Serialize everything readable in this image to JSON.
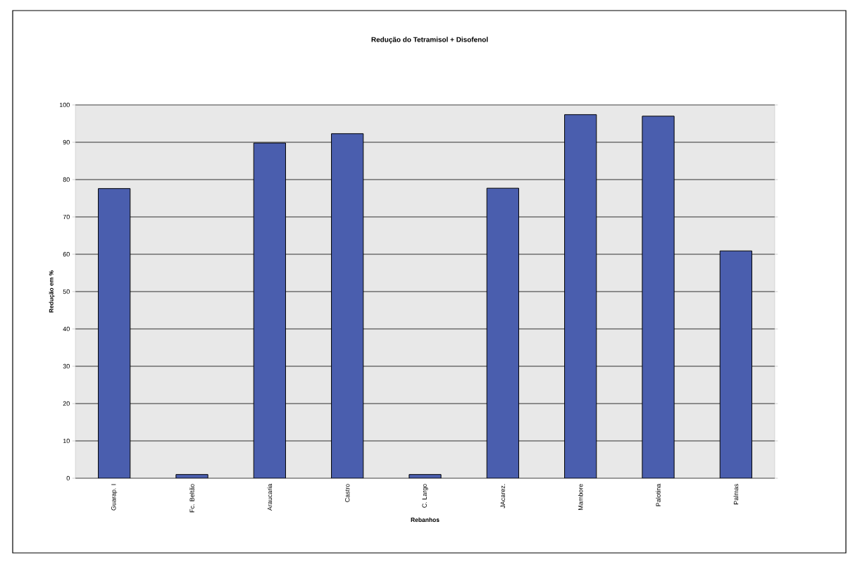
{
  "chart_data": {
    "type": "bar",
    "title": "Redução do Tetramisol + Disofenol",
    "xlabel": "Rebanhos",
    "ylabel": "Redução em %",
    "categories": [
      "Guarap. I",
      "Fc. Beltão",
      "Araucaria",
      "Castro",
      "C. Largo",
      "JAcarez.",
      "Mambore",
      "Palotina",
      "Palmas"
    ],
    "values": [
      77.6,
      1,
      89.8,
      92.3,
      1,
      77.7,
      97.4,
      97,
      60.9
    ],
    "color": "#4a5eae",
    "ylim": [
      0,
      100
    ],
    "yticks": [
      0,
      10,
      20,
      30,
      40,
      50,
      60,
      70,
      80,
      90,
      100
    ],
    "grid": "y"
  }
}
